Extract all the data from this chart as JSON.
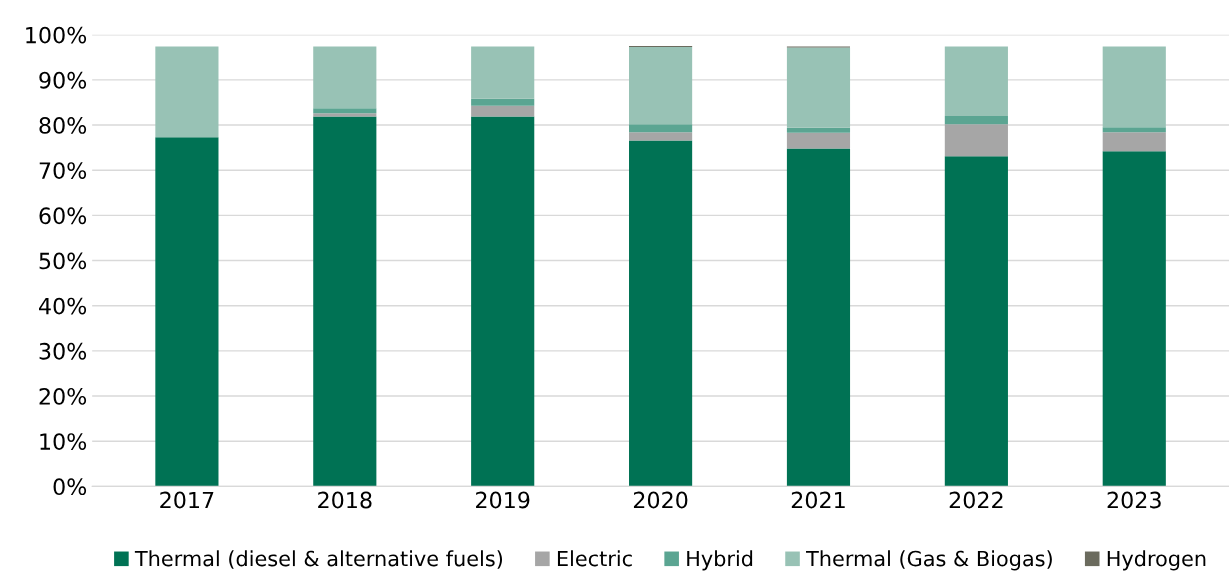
{
  "chart_data": {
    "type": "bar",
    "stacked": true,
    "categories": [
      "2017",
      "2018",
      "2019",
      "2020",
      "2021",
      "2022",
      "2023"
    ],
    "series": [
      {
        "name": "Thermal (diesel & alternative fuels)",
        "color": "#007254",
        "values": [
          77.3,
          81.9,
          81.9,
          76.6,
          74.8,
          73.1,
          74.2
        ]
      },
      {
        "name": "Electric",
        "color": "#a6a6a6",
        "values": [
          0,
          0.7,
          2.4,
          1.8,
          3.5,
          7.1,
          4.2
        ]
      },
      {
        "name": "Hybrid",
        "color": "#5ba592",
        "values": [
          0,
          1.1,
          1.5,
          1.8,
          1.1,
          1.8,
          1.1
        ]
      },
      {
        "name": "Thermal (Gas & Biogas)",
        "color": "#98c2b5",
        "values": [
          20.1,
          13.7,
          11.6,
          17.1,
          17.8,
          15.4,
          17.9
        ]
      },
      {
        "name": "Hydrogen",
        "color": "#6b6b5e",
        "values": [
          0,
          0,
          0,
          0.2,
          0.2,
          0,
          0
        ]
      }
    ],
    "ylim": [
      0,
      100
    ],
    "yticks": [
      {
        "value": 0,
        "label": "0%"
      },
      {
        "value": 10,
        "label": "10%"
      },
      {
        "value": 20,
        "label": "20%"
      },
      {
        "value": 30,
        "label": "30%"
      },
      {
        "value": 40,
        "label": "40%"
      },
      {
        "value": 50,
        "label": "50%"
      },
      {
        "value": 60,
        "label": "60%"
      },
      {
        "value": 70,
        "label": "70%"
      },
      {
        "value": 80,
        "label": "80%"
      },
      {
        "value": 90,
        "label": "90%"
      },
      {
        "value": 100,
        "label": "100%"
      }
    ],
    "grid": "y",
    "legend": "bottom"
  }
}
